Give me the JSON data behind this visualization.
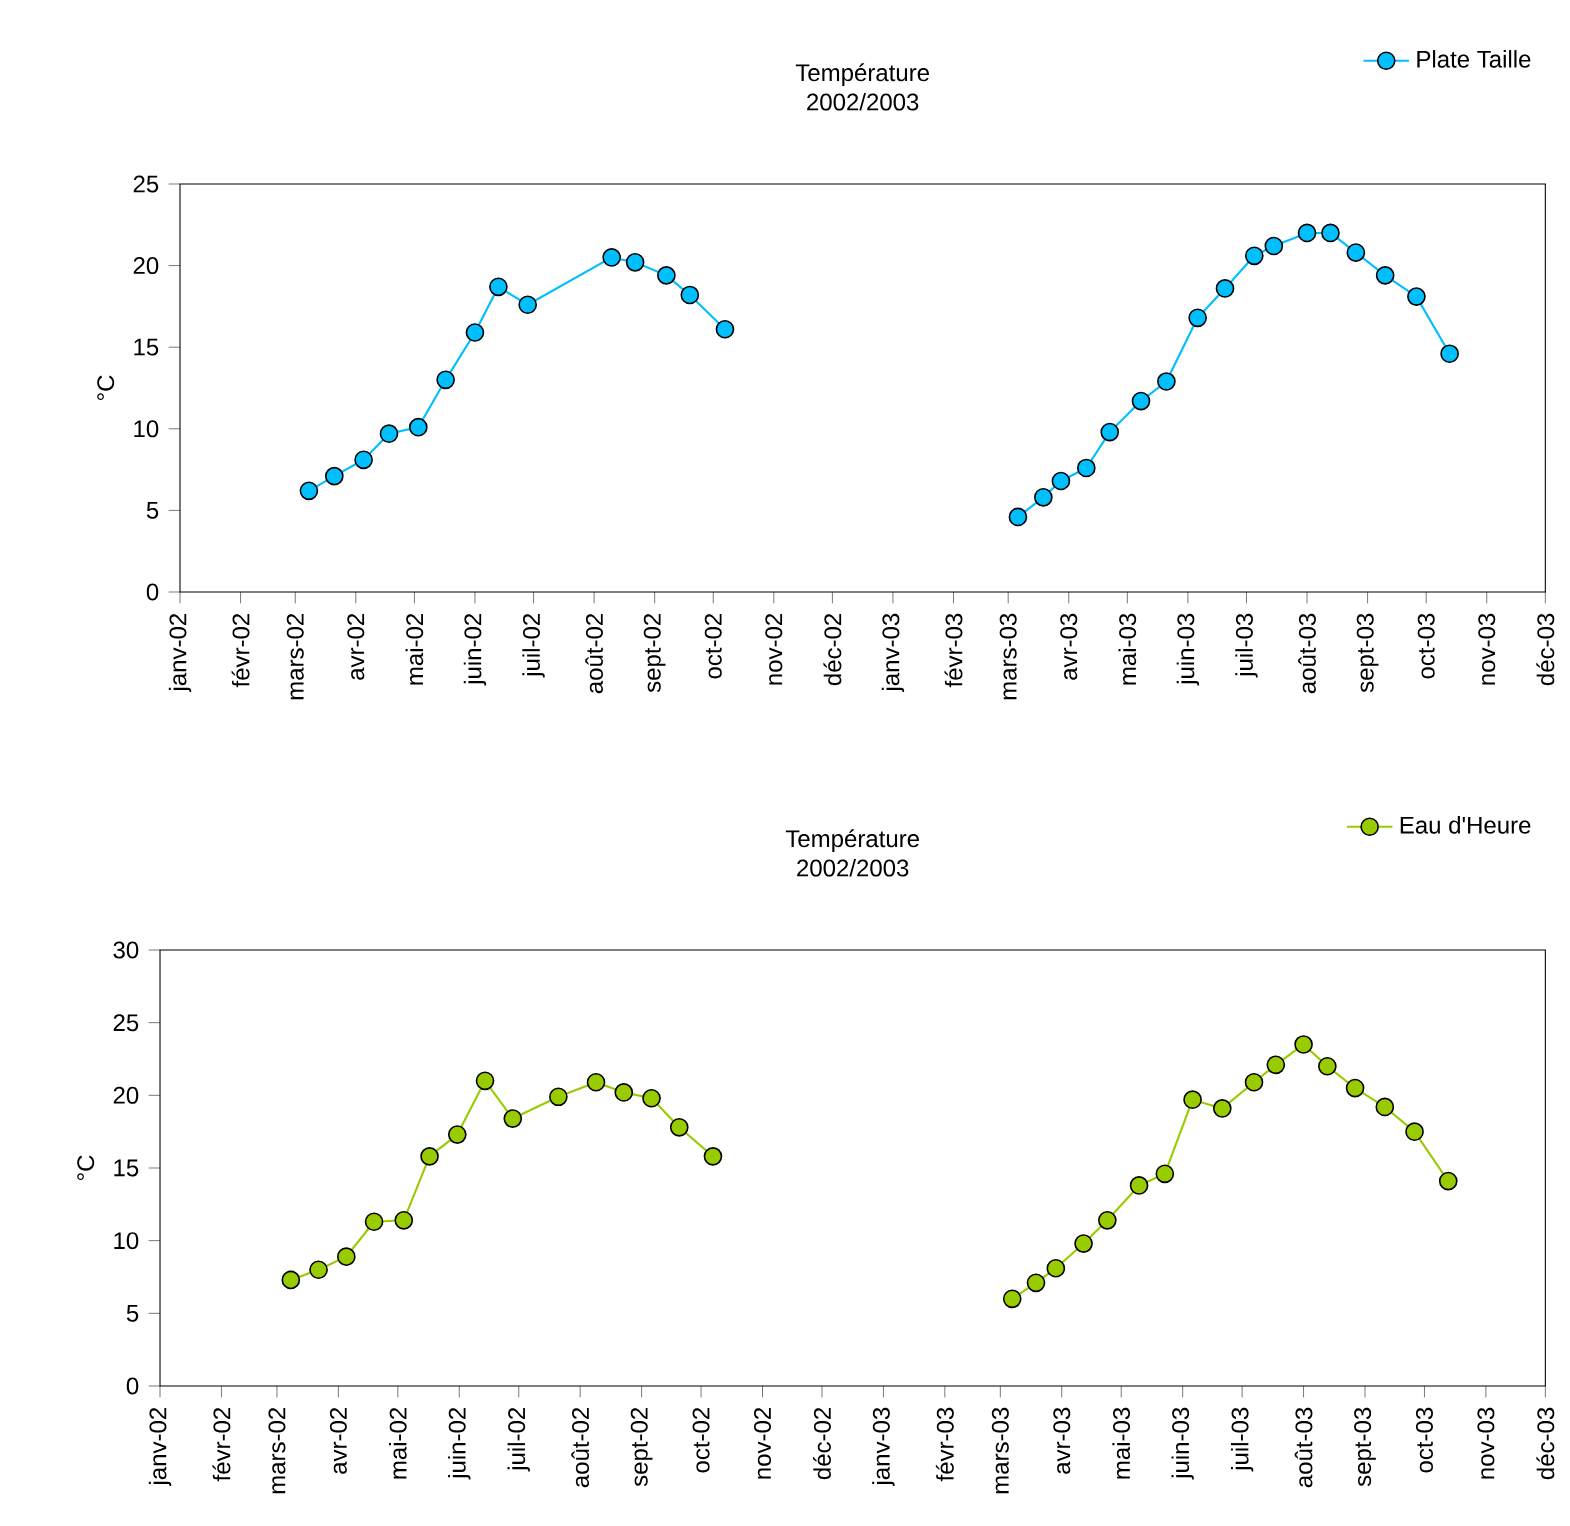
{
  "chart_data": [
    {
      "type": "line",
      "title": "Température",
      "subtitle": "2002/2003",
      "ylabel": "°C",
      "legend": "top right",
      "marker": "circle",
      "grid": false,
      "xlim": [
        "2002-01-01",
        "2003-12-01"
      ],
      "xticks": [
        {
          "value": "2002-01-01",
          "label": "janv-02"
        },
        {
          "value": "2002-02-01",
          "label": "févr-02"
        },
        {
          "value": "2002-03-01",
          "label": "mars-02"
        },
        {
          "value": "2002-04-01",
          "label": "avr-02"
        },
        {
          "value": "2002-05-01",
          "label": "mai-02"
        },
        {
          "value": "2002-06-01",
          "label": "juin-02"
        },
        {
          "value": "2002-07-01",
          "label": "juil-02"
        },
        {
          "value": "2002-08-01",
          "label": "août-02"
        },
        {
          "value": "2002-09-01",
          "label": "sept-02"
        },
        {
          "value": "2002-10-01",
          "label": "oct-02"
        },
        {
          "value": "2002-11-01",
          "label": "nov-02"
        },
        {
          "value": "2002-12-01",
          "label": "déc-02"
        },
        {
          "value": "2003-01-01",
          "label": "janv-03"
        },
        {
          "value": "2003-02-01",
          "label": "févr-03"
        },
        {
          "value": "2003-03-01",
          "label": "mars-03"
        },
        {
          "value": "2003-04-01",
          "label": "avr-03"
        },
        {
          "value": "2003-05-01",
          "label": "mai-03"
        },
        {
          "value": "2003-06-01",
          "label": "juin-03"
        },
        {
          "value": "2003-07-01",
          "label": "juil-03"
        },
        {
          "value": "2003-08-01",
          "label": "août-03"
        },
        {
          "value": "2003-09-01",
          "label": "sept-03"
        },
        {
          "value": "2003-10-01",
          "label": "oct-03"
        },
        {
          "value": "2003-11-01",
          "label": "nov-03"
        },
        {
          "value": "2003-12-01",
          "label": "déc-03"
        }
      ],
      "ylim": [
        0,
        25
      ],
      "yticks": [
        0,
        5,
        10,
        15,
        20,
        25
      ],
      "series": [
        {
          "name": "Plate Taille",
          "color": "#00bfff",
          "x": [
            "2002-03-08",
            "2002-03-21",
            "2002-04-05",
            "2002-04-18",
            "2002-05-03",
            "2002-05-17",
            "2002-06-01",
            "2002-06-13",
            "2002-06-28",
            "2002-08-10",
            "2002-08-22",
            "2002-09-07",
            "2002-09-19",
            "2002-10-07",
            null,
            "2003-03-06",
            "2003-03-19",
            "2003-03-28",
            "2003-04-10",
            "2003-04-22",
            "2003-05-08",
            "2003-05-21",
            "2003-06-06",
            "2003-06-20",
            "2003-07-05",
            "2003-07-15",
            "2003-08-01",
            "2003-08-13",
            "2003-08-26",
            "2003-09-10",
            "2003-09-26",
            "2003-10-13"
          ],
          "values": [
            6.2,
            7.1,
            8.1,
            9.7,
            10.1,
            13.0,
            15.9,
            18.7,
            17.6,
            20.5,
            20.2,
            19.4,
            18.2,
            16.1,
            null,
            4.6,
            5.8,
            6.8,
            7.6,
            9.8,
            11.7,
            12.9,
            16.8,
            18.6,
            20.6,
            21.2,
            22.0,
            22.0,
            20.8,
            19.4,
            18.1,
            14.6
          ]
        }
      ]
    },
    {
      "type": "line",
      "title": "Température",
      "subtitle": "2002/2003",
      "ylabel": "°C",
      "legend": "top right",
      "marker": "circle",
      "grid": false,
      "xlim": [
        "2002-01-01",
        "2003-12-01"
      ],
      "xticks": [
        {
          "value": "2002-01-01",
          "label": "janv-02"
        },
        {
          "value": "2002-02-01",
          "label": "févr-02"
        },
        {
          "value": "2002-03-01",
          "label": "mars-02"
        },
        {
          "value": "2002-04-01",
          "label": "avr-02"
        },
        {
          "value": "2002-05-01",
          "label": "mai-02"
        },
        {
          "value": "2002-06-01",
          "label": "juin-02"
        },
        {
          "value": "2002-07-01",
          "label": "juil-02"
        },
        {
          "value": "2002-08-01",
          "label": "août-02"
        },
        {
          "value": "2002-09-01",
          "label": "sept-02"
        },
        {
          "value": "2002-10-01",
          "label": "oct-02"
        },
        {
          "value": "2002-11-01",
          "label": "nov-02"
        },
        {
          "value": "2002-12-01",
          "label": "déc-02"
        },
        {
          "value": "2003-01-01",
          "label": "janv-03"
        },
        {
          "value": "2003-02-01",
          "label": "févr-03"
        },
        {
          "value": "2003-03-01",
          "label": "mars-03"
        },
        {
          "value": "2003-04-01",
          "label": "avr-03"
        },
        {
          "value": "2003-05-01",
          "label": "mai-03"
        },
        {
          "value": "2003-06-01",
          "label": "juin-03"
        },
        {
          "value": "2003-07-01",
          "label": "juil-03"
        },
        {
          "value": "2003-08-01",
          "label": "août-03"
        },
        {
          "value": "2003-09-01",
          "label": "sept-03"
        },
        {
          "value": "2003-10-01",
          "label": "oct-03"
        },
        {
          "value": "2003-11-01",
          "label": "nov-03"
        },
        {
          "value": "2003-12-01",
          "label": "déc-03"
        }
      ],
      "ylim": [
        0,
        30
      ],
      "yticks": [
        0,
        5,
        10,
        15,
        20,
        25,
        30
      ],
      "series": [
        {
          "name": "Eau d'Heure",
          "color": "#99cc00",
          "x": [
            "2002-03-08",
            "2002-03-22",
            "2002-04-05",
            "2002-04-19",
            "2002-05-04",
            "2002-05-17",
            "2002-05-31",
            "2002-06-14",
            "2002-06-28",
            "2002-07-21",
            "2002-08-09",
            "2002-08-23",
            "2002-09-06",
            "2002-09-20",
            "2002-10-07",
            null,
            "2003-03-07",
            "2003-03-19",
            "2003-03-29",
            "2003-04-12",
            "2003-04-24",
            "2003-05-10",
            "2003-05-23",
            "2003-06-06",
            "2003-06-21",
            "2003-07-07",
            "2003-07-18",
            "2003-08-01",
            "2003-08-13",
            "2003-08-27",
            "2003-09-11",
            "2003-09-26",
            "2003-10-13"
          ],
          "values": [
            7.3,
            8.0,
            8.9,
            11.3,
            11.4,
            15.8,
            17.3,
            21.0,
            18.4,
            19.9,
            20.9,
            20.2,
            19.8,
            17.8,
            15.8,
            null,
            6.0,
            7.1,
            8.1,
            9.8,
            11.4,
            13.8,
            14.6,
            19.7,
            19.1,
            20.9,
            22.1,
            23.5,
            22.0,
            20.5,
            19.2,
            17.5,
            14.1
          ]
        }
      ]
    }
  ]
}
